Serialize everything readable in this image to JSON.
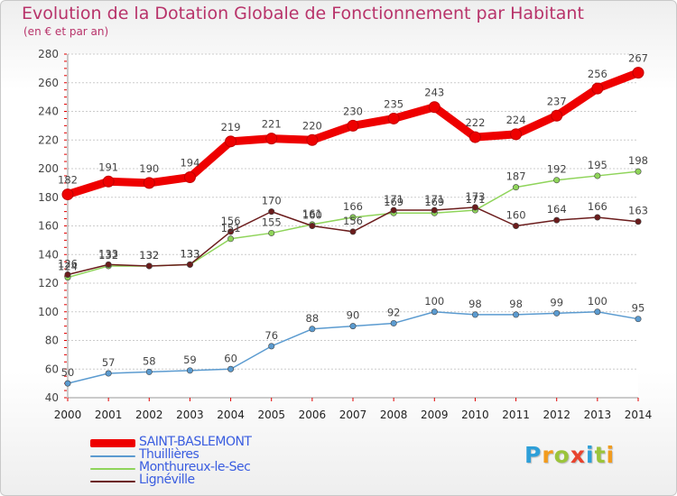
{
  "header": {
    "title": "Evolution de la Dotation Globale de Fonctionnement par Habitant",
    "subtitle": "(en € et par an)"
  },
  "brand": {
    "text": "Proxiti",
    "colors": [
      "#2e9fd8",
      "#f29b1d",
      "#9bc43b",
      "#e8432e",
      "#2e9fd8",
      "#9bc43b",
      "#f29b1d"
    ]
  },
  "chart_data": {
    "type": "line",
    "title": "Evolution de la Dotation Globale de Fonctionnement par Habitant",
    "subtitle": "(en € et par an)",
    "xlabel": "",
    "ylabel": "",
    "x": [
      "2000",
      "2001",
      "2002",
      "2003",
      "2004",
      "2005",
      "2006",
      "2007",
      "2008",
      "2009",
      "2010",
      "2011",
      "2012",
      "2013",
      "2014"
    ],
    "ylim": [
      40,
      280
    ],
    "yticks": [
      40,
      60,
      80,
      100,
      120,
      140,
      160,
      180,
      200,
      220,
      240,
      260,
      280
    ],
    "grid": "horizontal",
    "legend_position": "bottom-left",
    "series": [
      {
        "name": "SAINT-BASLEMONT",
        "color": "#ee0000",
        "emphasis": true,
        "values": [
          182,
          191,
          190,
          194,
          219,
          221,
          220,
          230,
          235,
          243,
          222,
          224,
          237,
          256,
          267
        ],
        "labels": [
          "182",
          "191",
          "190",
          "194",
          "219",
          "221",
          "220",
          "230",
          "235",
          "243",
          "222",
          "224",
          "237",
          "256",
          "267"
        ]
      },
      {
        "name": "Thuillières",
        "color": "#5b9bd0",
        "emphasis": false,
        "values": [
          50,
          57,
          58,
          59,
          60,
          76,
          88,
          90,
          92,
          100,
          98,
          98,
          99,
          100,
          95
        ],
        "labels": [
          "50",
          "57",
          "58",
          "59",
          "60",
          "76",
          "88",
          "90",
          "92",
          "100",
          "98",
          "98",
          "99",
          "100",
          "95"
        ]
      },
      {
        "name": "Monthureux-le-Sec",
        "color": "#8fd45a",
        "emphasis": false,
        "values": [
          124,
          132,
          132,
          133,
          151,
          155,
          161,
          166,
          169,
          169,
          171,
          187,
          192,
          195,
          198
        ],
        "labels": [
          "124",
          "132",
          "132",
          "133",
          "151",
          "155",
          "161",
          "166",
          "169",
          "169",
          "171",
          "187",
          "192",
          "195",
          "198"
        ]
      },
      {
        "name": "Lignéville",
        "color": "#6b1c1c",
        "emphasis": false,
        "values": [
          126,
          133,
          132,
          133,
          156,
          170,
          160,
          156,
          171,
          171,
          173,
          160,
          164,
          166,
          163
        ],
        "labels": [
          "126",
          "133",
          "132",
          "133",
          "156",
          "170",
          "160",
          "156",
          "171",
          "171",
          "173",
          "160",
          "164",
          "166",
          "163"
        ]
      }
    ]
  }
}
